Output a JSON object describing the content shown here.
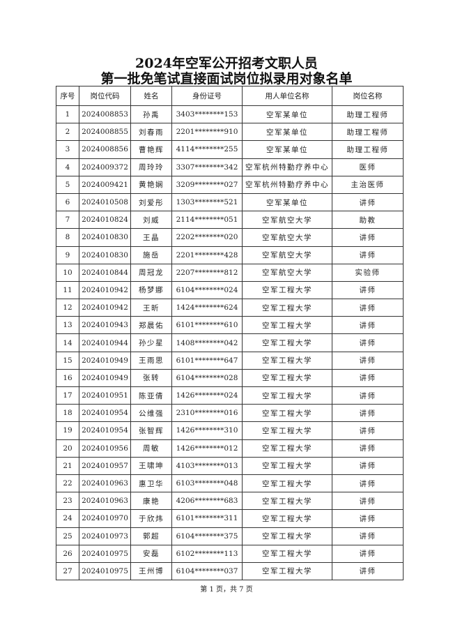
{
  "title_line1": "2024年空军公开招考文职人员",
  "title_line2": "第一批免笔试直接面试岗位拟录用对象名单",
  "columns": [
    "序号",
    "岗位代码",
    "姓名",
    "身份证号",
    "用人单位名称",
    "岗位名称"
  ],
  "rows": [
    [
      "1",
      "2024008853",
      "孙禹",
      "3403********153",
      "空军某单位",
      "助理工程师"
    ],
    [
      "2",
      "2024008855",
      "刘春雨",
      "2201********910",
      "空军某单位",
      "助理工程师"
    ],
    [
      "3",
      "2024008856",
      "曹艳辉",
      "4114********255",
      "空军某单位",
      "助理工程师"
    ],
    [
      "4",
      "2024009372",
      "周玲玲",
      "3307********342",
      "空军杭州特勤疗养中心",
      "医师"
    ],
    [
      "5",
      "2024009421",
      "黄艳娴",
      "3209********027",
      "空军杭州特勤疗养中心",
      "主治医师"
    ],
    [
      "6",
      "2024010508",
      "刘爱彤",
      "1303********521",
      "空军某单位",
      "讲师"
    ],
    [
      "7",
      "2024010824",
      "刘威",
      "2114********051",
      "空军航空大学",
      "助教"
    ],
    [
      "8",
      "2024010830",
      "王晶",
      "2202********020",
      "空军航空大学",
      "讲师"
    ],
    [
      "9",
      "2024010830",
      "施岳",
      "2201********428",
      "空军航空大学",
      "讲师"
    ],
    [
      "10",
      "2024010844",
      "周冠龙",
      "2207********812",
      "空军航空大学",
      "实验师"
    ],
    [
      "11",
      "2024010942",
      "杨梦娜",
      "6104********024",
      "空军工程大学",
      "讲师"
    ],
    [
      "12",
      "2024010942",
      "王昕",
      "1424********624",
      "空军工程大学",
      "讲师"
    ],
    [
      "13",
      "2024010943",
      "郑晨佑",
      "6101********610",
      "空军工程大学",
      "讲师"
    ],
    [
      "14",
      "2024010944",
      "孙少星",
      "1408********042",
      "空军工程大学",
      "讲师"
    ],
    [
      "15",
      "2024010949",
      "王雨思",
      "6101********647",
      "空军工程大学",
      "讲师"
    ],
    [
      "16",
      "2024010949",
      "张转",
      "6104********028",
      "空军工程大学",
      "讲师"
    ],
    [
      "17",
      "2024010951",
      "陈亚倩",
      "1426********024",
      "空军工程大学",
      "讲师"
    ],
    [
      "18",
      "2024010954",
      "公维强",
      "2310********016",
      "空军工程大学",
      "讲师"
    ],
    [
      "19",
      "2024010954",
      "张智辉",
      "1426********310",
      "空军工程大学",
      "讲师"
    ],
    [
      "20",
      "2024010956",
      "周敏",
      "1426********012",
      "空军工程大学",
      "讲师"
    ],
    [
      "21",
      "2024010957",
      "王啸坤",
      "4103********013",
      "空军工程大学",
      "讲师"
    ],
    [
      "22",
      "2024010963",
      "惠卫华",
      "6103********048",
      "空军工程大学",
      "讲师"
    ],
    [
      "23",
      "2024010963",
      "康艳",
      "4206********683",
      "空军工程大学",
      "讲师"
    ],
    [
      "24",
      "2024010970",
      "于欣炜",
      "6101********311",
      "空军工程大学",
      "讲师"
    ],
    [
      "25",
      "2024010973",
      "郭超",
      "6104********375",
      "空军工程大学",
      "讲师"
    ],
    [
      "26",
      "2024010975",
      "安磊",
      "6102********113",
      "空军工程大学",
      "讲师"
    ],
    [
      "27",
      "2024010975",
      "王州博",
      "6104********037",
      "空军工程大学",
      "讲师"
    ]
  ],
  "footer": "第 1 页，共 7 页"
}
